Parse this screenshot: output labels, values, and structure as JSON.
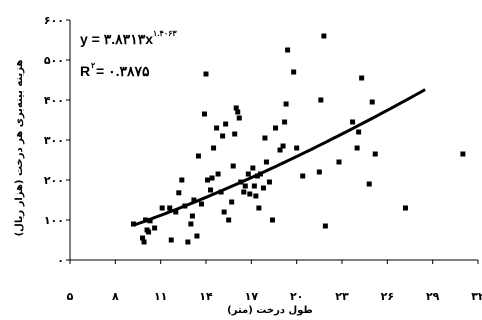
{
  "chart_data": {
    "type": "scatter",
    "xlabel": "طول درخت (متر)",
    "ylabel": "هزینه بینه‌بری هر درخت (هزار ریال)",
    "xlim": [
      5,
      32
    ],
    "ylim": [
      0,
      600
    ],
    "x_ticks": [
      "۵",
      "۸",
      "۱۱",
      "۱۴",
      "۱۷",
      "۲۰",
      "۲۳",
      "۲۶",
      "۲۹",
      "۳۲"
    ],
    "y_ticks": [
      "۰",
      "۱۰۰",
      "۲۰۰",
      "۳۰۰",
      "۴۰۰",
      "۵۰۰",
      "۶۰۰"
    ],
    "annotation_equation": "y = ۳.۸۳۱۳x",
    "annotation_exponent": "۱.۴۰۶۳",
    "annotation_r2_label": "R",
    "annotation_r2_sup": "۲",
    "annotation_r2_value": " = ۰.۳۸۷۵",
    "trendline": {
      "type": "power",
      "coefficient": 3.8313,
      "exponent": 1.4063,
      "x_range": [
        9.3,
        28.5
      ]
    },
    "points": [
      [
        9.2,
        90
      ],
      [
        9.8,
        55
      ],
      [
        9.9,
        45
      ],
      [
        10.0,
        100
      ],
      [
        10.1,
        75
      ],
      [
        10.2,
        70
      ],
      [
        10.3,
        98
      ],
      [
        10.6,
        80
      ],
      [
        11.1,
        130
      ],
      [
        11.6,
        130
      ],
      [
        11.7,
        50
      ],
      [
        12.0,
        120
      ],
      [
        12.2,
        168
      ],
      [
        12.4,
        200
      ],
      [
        12.6,
        135
      ],
      [
        12.8,
        45
      ],
      [
        13.0,
        90
      ],
      [
        13.1,
        110
      ],
      [
        13.2,
        150
      ],
      [
        13.4,
        60
      ],
      [
        13.5,
        260
      ],
      [
        13.7,
        140
      ],
      [
        13.9,
        365
      ],
      [
        14.0,
        465
      ],
      [
        14.1,
        200
      ],
      [
        14.3,
        175
      ],
      [
        14.4,
        205
      ],
      [
        14.5,
        280
      ],
      [
        14.7,
        330
      ],
      [
        14.8,
        215
      ],
      [
        15.0,
        170
      ],
      [
        15.1,
        310
      ],
      [
        15.2,
        120
      ],
      [
        15.3,
        340
      ],
      [
        15.5,
        100
      ],
      [
        15.7,
        145
      ],
      [
        15.8,
        235
      ],
      [
        15.9,
        315
      ],
      [
        16.0,
        380
      ],
      [
        16.1,
        370
      ],
      [
        16.2,
        355
      ],
      [
        16.3,
        195
      ],
      [
        16.5,
        170
      ],
      [
        16.6,
        185
      ],
      [
        16.8,
        215
      ],
      [
        16.9,
        165
      ],
      [
        17.1,
        230
      ],
      [
        17.2,
        185
      ],
      [
        17.3,
        160
      ],
      [
        17.4,
        210
      ],
      [
        17.5,
        130
      ],
      [
        17.6,
        215
      ],
      [
        17.8,
        180
      ],
      [
        17.9,
        305
      ],
      [
        18.0,
        245
      ],
      [
        18.2,
        195
      ],
      [
        18.4,
        100
      ],
      [
        18.6,
        330
      ],
      [
        18.9,
        275
      ],
      [
        19.1,
        285
      ],
      [
        19.2,
        345
      ],
      [
        19.3,
        390
      ],
      [
        19.4,
        525
      ],
      [
        19.8,
        470
      ],
      [
        20.0,
        280
      ],
      [
        20.4,
        210
      ],
      [
        21.5,
        220
      ],
      [
        21.6,
        400
      ],
      [
        21.8,
        560
      ],
      [
        21.9,
        85
      ],
      [
        22.8,
        245
      ],
      [
        23.7,
        345
      ],
      [
        24.0,
        280
      ],
      [
        24.1,
        320
      ],
      [
        24.3,
        455
      ],
      [
        24.8,
        190
      ],
      [
        25.0,
        395
      ],
      [
        25.2,
        265
      ],
      [
        27.2,
        130
      ],
      [
        31.0,
        265
      ]
    ]
  }
}
